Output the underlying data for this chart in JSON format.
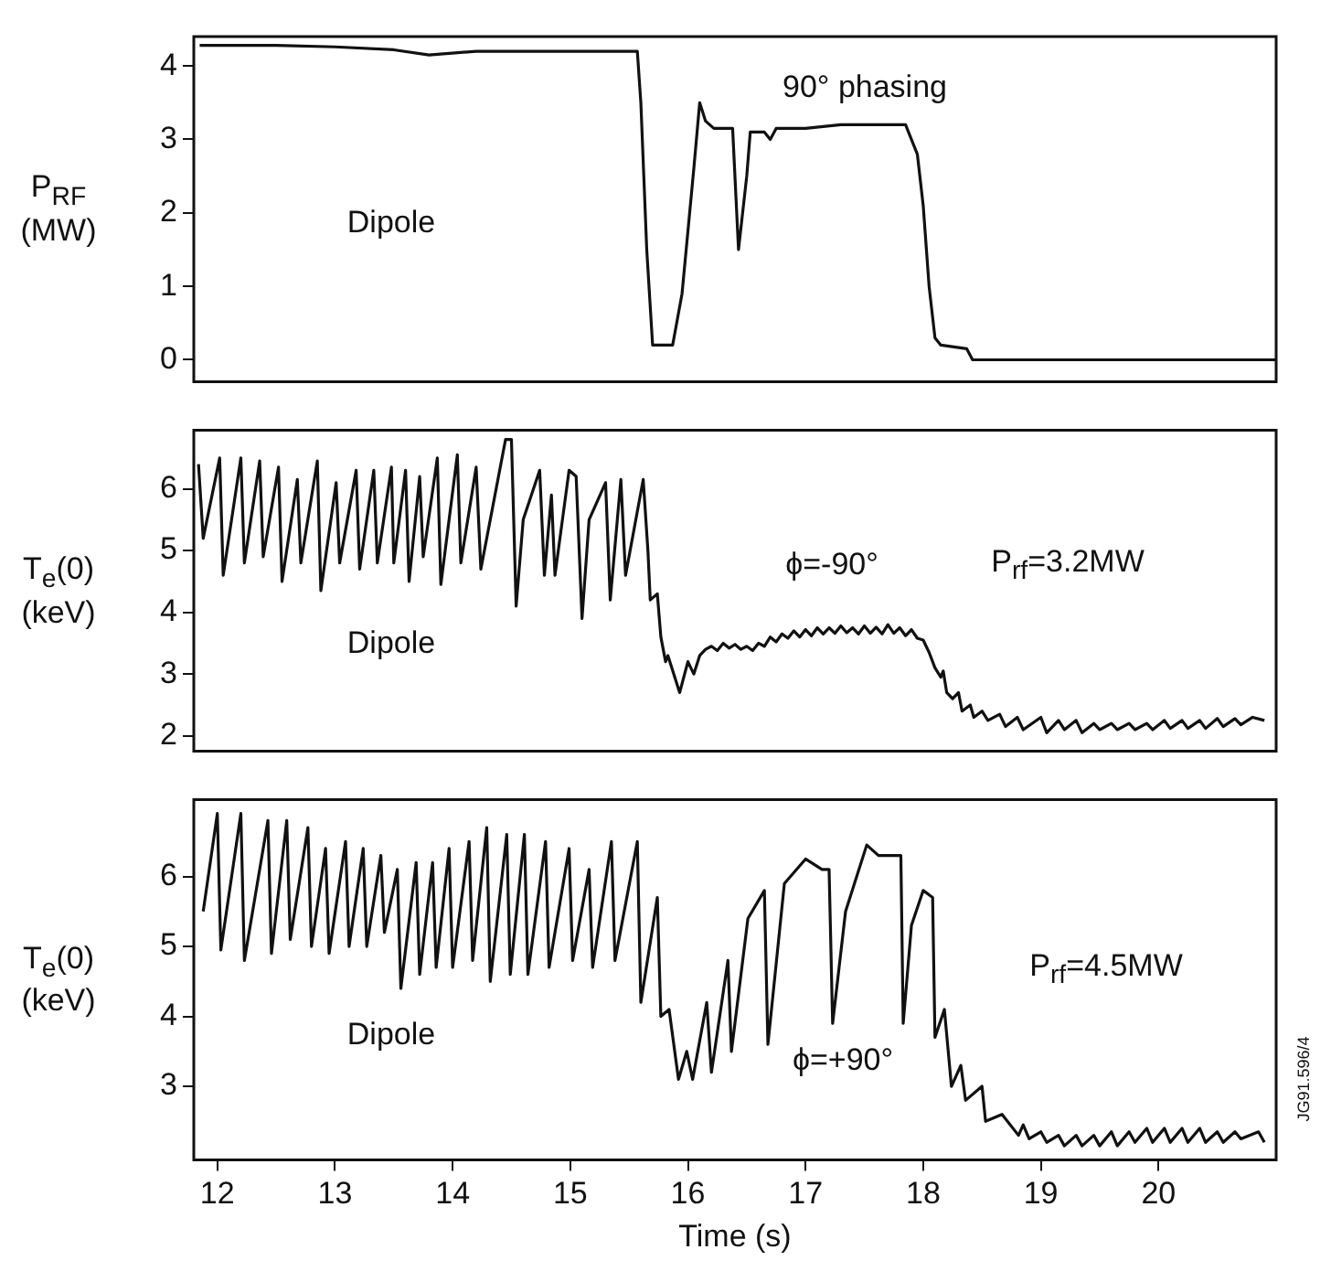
{
  "chart_data": [
    {
      "type": "line",
      "ylabel": "P$_{RF}$\n(MW)",
      "annotations": [
        "Dipole",
        "90° phasing"
      ],
      "color": "#111111",
      "tick_labels": "y",
      "xlim": [
        11.8,
        21.0
      ],
      "xticks": [
        12,
        13,
        14,
        15,
        16,
        17,
        18,
        19,
        20
      ],
      "ylim": [
        -0.3,
        4.4
      ],
      "yticks": [
        0,
        1,
        2,
        3,
        4
      ],
      "x": [
        11.85,
        12.5,
        13.0,
        13.5,
        13.8,
        14.2,
        14.8,
        15.57,
        15.6,
        15.65,
        15.7,
        15.87,
        15.95,
        16.05,
        16.1,
        16.15,
        16.22,
        16.38,
        16.43,
        16.5,
        16.53,
        16.65,
        16.7,
        16.75,
        17.0,
        17.3,
        17.6,
        17.85,
        17.95,
        18.0,
        18.05,
        18.1,
        18.15,
        18.37,
        18.42,
        21.0
      ],
      "values": [
        4.28,
        4.28,
        4.26,
        4.22,
        4.15,
        4.2,
        4.2,
        4.2,
        3.5,
        1.5,
        0.2,
        0.2,
        0.9,
        2.6,
        3.5,
        3.25,
        3.15,
        3.15,
        1.5,
        2.5,
        3.1,
        3.1,
        3.0,
        3.15,
        3.15,
        3.2,
        3.2,
        3.2,
        2.8,
        2.1,
        1.0,
        0.3,
        0.2,
        0.15,
        0.0,
        0.0
      ]
    },
    {
      "type": "line",
      "ylabel": "T$_{e}$(0)\n(keV)",
      "annotations": [
        "Dipole",
        "ϕ=-90°",
        "P$_{rf}$=3.2MW"
      ],
      "color": "#111111",
      "tick_labels": "y",
      "xlim": [
        11.8,
        21.0
      ],
      "xticks": [
        12,
        13,
        14,
        15,
        16,
        17,
        18,
        19,
        20
      ],
      "ylim": [
        1.75,
        6.95
      ],
      "yticks": [
        2,
        3,
        4,
        5,
        6
      ],
      "x": [
        11.84,
        11.88,
        12.02,
        12.05,
        12.2,
        12.23,
        12.36,
        12.39,
        12.52,
        12.55,
        12.68,
        12.71,
        12.85,
        12.88,
        13.01,
        13.04,
        13.18,
        13.21,
        13.33,
        13.36,
        13.48,
        13.5,
        13.6,
        13.63,
        13.72,
        13.75,
        13.87,
        13.9,
        14.04,
        14.07,
        14.2,
        14.24,
        14.45,
        14.5,
        14.54,
        14.6,
        14.74,
        14.78,
        14.84,
        14.87,
        14.99,
        15.05,
        15.1,
        15.16,
        15.3,
        15.34,
        15.43,
        15.47,
        15.62,
        15.66,
        15.68,
        15.74,
        15.77,
        15.81,
        15.83,
        15.93,
        16.0,
        16.05,
        16.1,
        16.15,
        16.2,
        16.25,
        16.3,
        16.35,
        16.4,
        16.45,
        16.5,
        16.55,
        16.6,
        16.65,
        16.7,
        16.75,
        16.8,
        16.85,
        16.9,
        16.95,
        17.0,
        17.05,
        17.1,
        17.15,
        17.2,
        17.25,
        17.3,
        17.35,
        17.4,
        17.45,
        17.5,
        17.55,
        17.6,
        17.65,
        17.7,
        17.75,
        17.8,
        17.85,
        17.9,
        17.95,
        18.0,
        18.05,
        18.1,
        18.15,
        18.17,
        18.2,
        18.25,
        18.3,
        18.33,
        18.4,
        18.43,
        18.5,
        18.55,
        18.65,
        18.7,
        18.8,
        18.85,
        19.0,
        19.05,
        19.15,
        19.2,
        19.3,
        19.35,
        19.45,
        19.5,
        19.6,
        19.65,
        19.75,
        19.8,
        19.9,
        19.95,
        20.05,
        20.1,
        20.2,
        20.25,
        20.35,
        20.4,
        20.5,
        20.55,
        20.65,
        20.7,
        20.8,
        20.9
      ],
      "values": [
        6.4,
        5.2,
        6.5,
        4.6,
        6.5,
        4.8,
        6.45,
        4.9,
        6.35,
        4.5,
        6.15,
        4.8,
        6.45,
        4.35,
        6.1,
        4.8,
        6.3,
        4.7,
        6.3,
        4.8,
        6.35,
        4.8,
        6.3,
        4.5,
        6.2,
        4.9,
        6.5,
        4.45,
        6.55,
        4.8,
        6.35,
        4.7,
        6.8,
        6.8,
        4.1,
        5.5,
        6.3,
        4.6,
        5.9,
        4.6,
        6.3,
        6.2,
        3.9,
        5.5,
        6.1,
        4.2,
        6.15,
        4.6,
        6.15,
        5.0,
        4.2,
        4.3,
        3.6,
        3.2,
        3.3,
        2.7,
        3.2,
        3.0,
        3.3,
        3.4,
        3.45,
        3.38,
        3.5,
        3.42,
        3.48,
        3.4,
        3.45,
        3.38,
        3.5,
        3.45,
        3.6,
        3.52,
        3.65,
        3.58,
        3.7,
        3.6,
        3.72,
        3.62,
        3.75,
        3.65,
        3.75,
        3.66,
        3.78,
        3.67,
        3.75,
        3.65,
        3.78,
        3.66,
        3.76,
        3.65,
        3.8,
        3.66,
        3.75,
        3.62,
        3.72,
        3.58,
        3.55,
        3.35,
        3.1,
        2.95,
        3.05,
        2.7,
        2.6,
        2.7,
        2.4,
        2.5,
        2.3,
        2.4,
        2.25,
        2.35,
        2.15,
        2.3,
        2.1,
        2.3,
        2.05,
        2.25,
        2.1,
        2.25,
        2.05,
        2.2,
        2.1,
        2.2,
        2.1,
        2.2,
        2.1,
        2.2,
        2.1,
        2.25,
        2.12,
        2.25,
        2.12,
        2.25,
        2.12,
        2.28,
        2.15,
        2.28,
        2.18,
        2.3,
        2.25
      ]
    },
    {
      "type": "line",
      "xlabel": "Time (s)",
      "ylabel": "T$_{e}$(0)\n(keV)",
      "annotations": [
        "Dipole",
        "ϕ=+90°",
        "P$_{rf}$=4.5MW",
        "JG91.596/4"
      ],
      "color": "#111111",
      "xlim": [
        11.8,
        21.0
      ],
      "xticks": [
        12,
        13,
        14,
        15,
        16,
        17,
        18,
        19,
        20
      ],
      "ylim": [
        1.95,
        7.1
      ],
      "yticks": [
        3,
        4,
        5,
        6
      ],
      "x": [
        11.88,
        12.0,
        12.03,
        12.2,
        12.23,
        12.43,
        12.46,
        12.59,
        12.62,
        12.77,
        12.8,
        12.92,
        12.95,
        13.09,
        13.12,
        13.24,
        13.27,
        13.39,
        13.42,
        13.53,
        13.56,
        13.69,
        13.72,
        13.83,
        13.86,
        13.97,
        14.0,
        14.14,
        14.17,
        14.29,
        14.32,
        14.46,
        14.49,
        14.61,
        14.64,
        14.79,
        14.82,
        14.99,
        15.02,
        15.16,
        15.19,
        15.35,
        15.38,
        15.57,
        15.6,
        15.74,
        15.77,
        15.84,
        15.92,
        15.99,
        16.04,
        16.16,
        16.2,
        16.34,
        16.37,
        16.51,
        16.65,
        16.68,
        16.82,
        17.0,
        17.14,
        17.2,
        17.23,
        17.34,
        17.52,
        17.62,
        17.81,
        17.83,
        17.9,
        18.0,
        18.08,
        18.1,
        18.18,
        18.24,
        18.32,
        18.36,
        18.5,
        18.53,
        18.67,
        18.81,
        18.85,
        18.9,
        19.0,
        19.05,
        19.15,
        19.2,
        19.3,
        19.35,
        19.45,
        19.5,
        19.6,
        19.65,
        19.75,
        19.8,
        19.9,
        19.95,
        20.05,
        20.1,
        20.2,
        20.25,
        20.35,
        20.4,
        20.5,
        20.55,
        20.65,
        20.7,
        20.85,
        20.9
      ],
      "values": [
        5.5,
        6.9,
        4.95,
        6.9,
        4.8,
        6.8,
        4.9,
        6.8,
        5.1,
        6.7,
        5.0,
        6.4,
        4.9,
        6.5,
        5.0,
        6.4,
        5.0,
        6.3,
        5.2,
        6.1,
        4.4,
        6.2,
        4.6,
        6.2,
        4.7,
        6.4,
        4.7,
        6.5,
        4.8,
        6.7,
        4.5,
        6.6,
        4.6,
        6.6,
        4.6,
        6.5,
        4.7,
        6.4,
        4.8,
        6.1,
        4.7,
        6.5,
        4.8,
        6.5,
        4.2,
        5.7,
        4.0,
        4.1,
        3.1,
        3.5,
        3.1,
        4.2,
        3.2,
        4.8,
        3.5,
        5.4,
        5.8,
        3.6,
        5.9,
        6.25,
        6.1,
        6.1,
        3.9,
        5.5,
        6.45,
        6.3,
        6.3,
        3.9,
        5.3,
        5.8,
        5.7,
        3.7,
        4.1,
        3.0,
        3.3,
        2.8,
        3.0,
        2.5,
        2.6,
        2.3,
        2.45,
        2.25,
        2.35,
        2.2,
        2.3,
        2.15,
        2.3,
        2.15,
        2.3,
        2.15,
        2.35,
        2.15,
        2.35,
        2.2,
        2.4,
        2.2,
        2.4,
        2.2,
        2.4,
        2.2,
        2.4,
        2.2,
        2.35,
        2.2,
        2.35,
        2.25,
        2.35,
        2.2
      ]
    }
  ]
}
